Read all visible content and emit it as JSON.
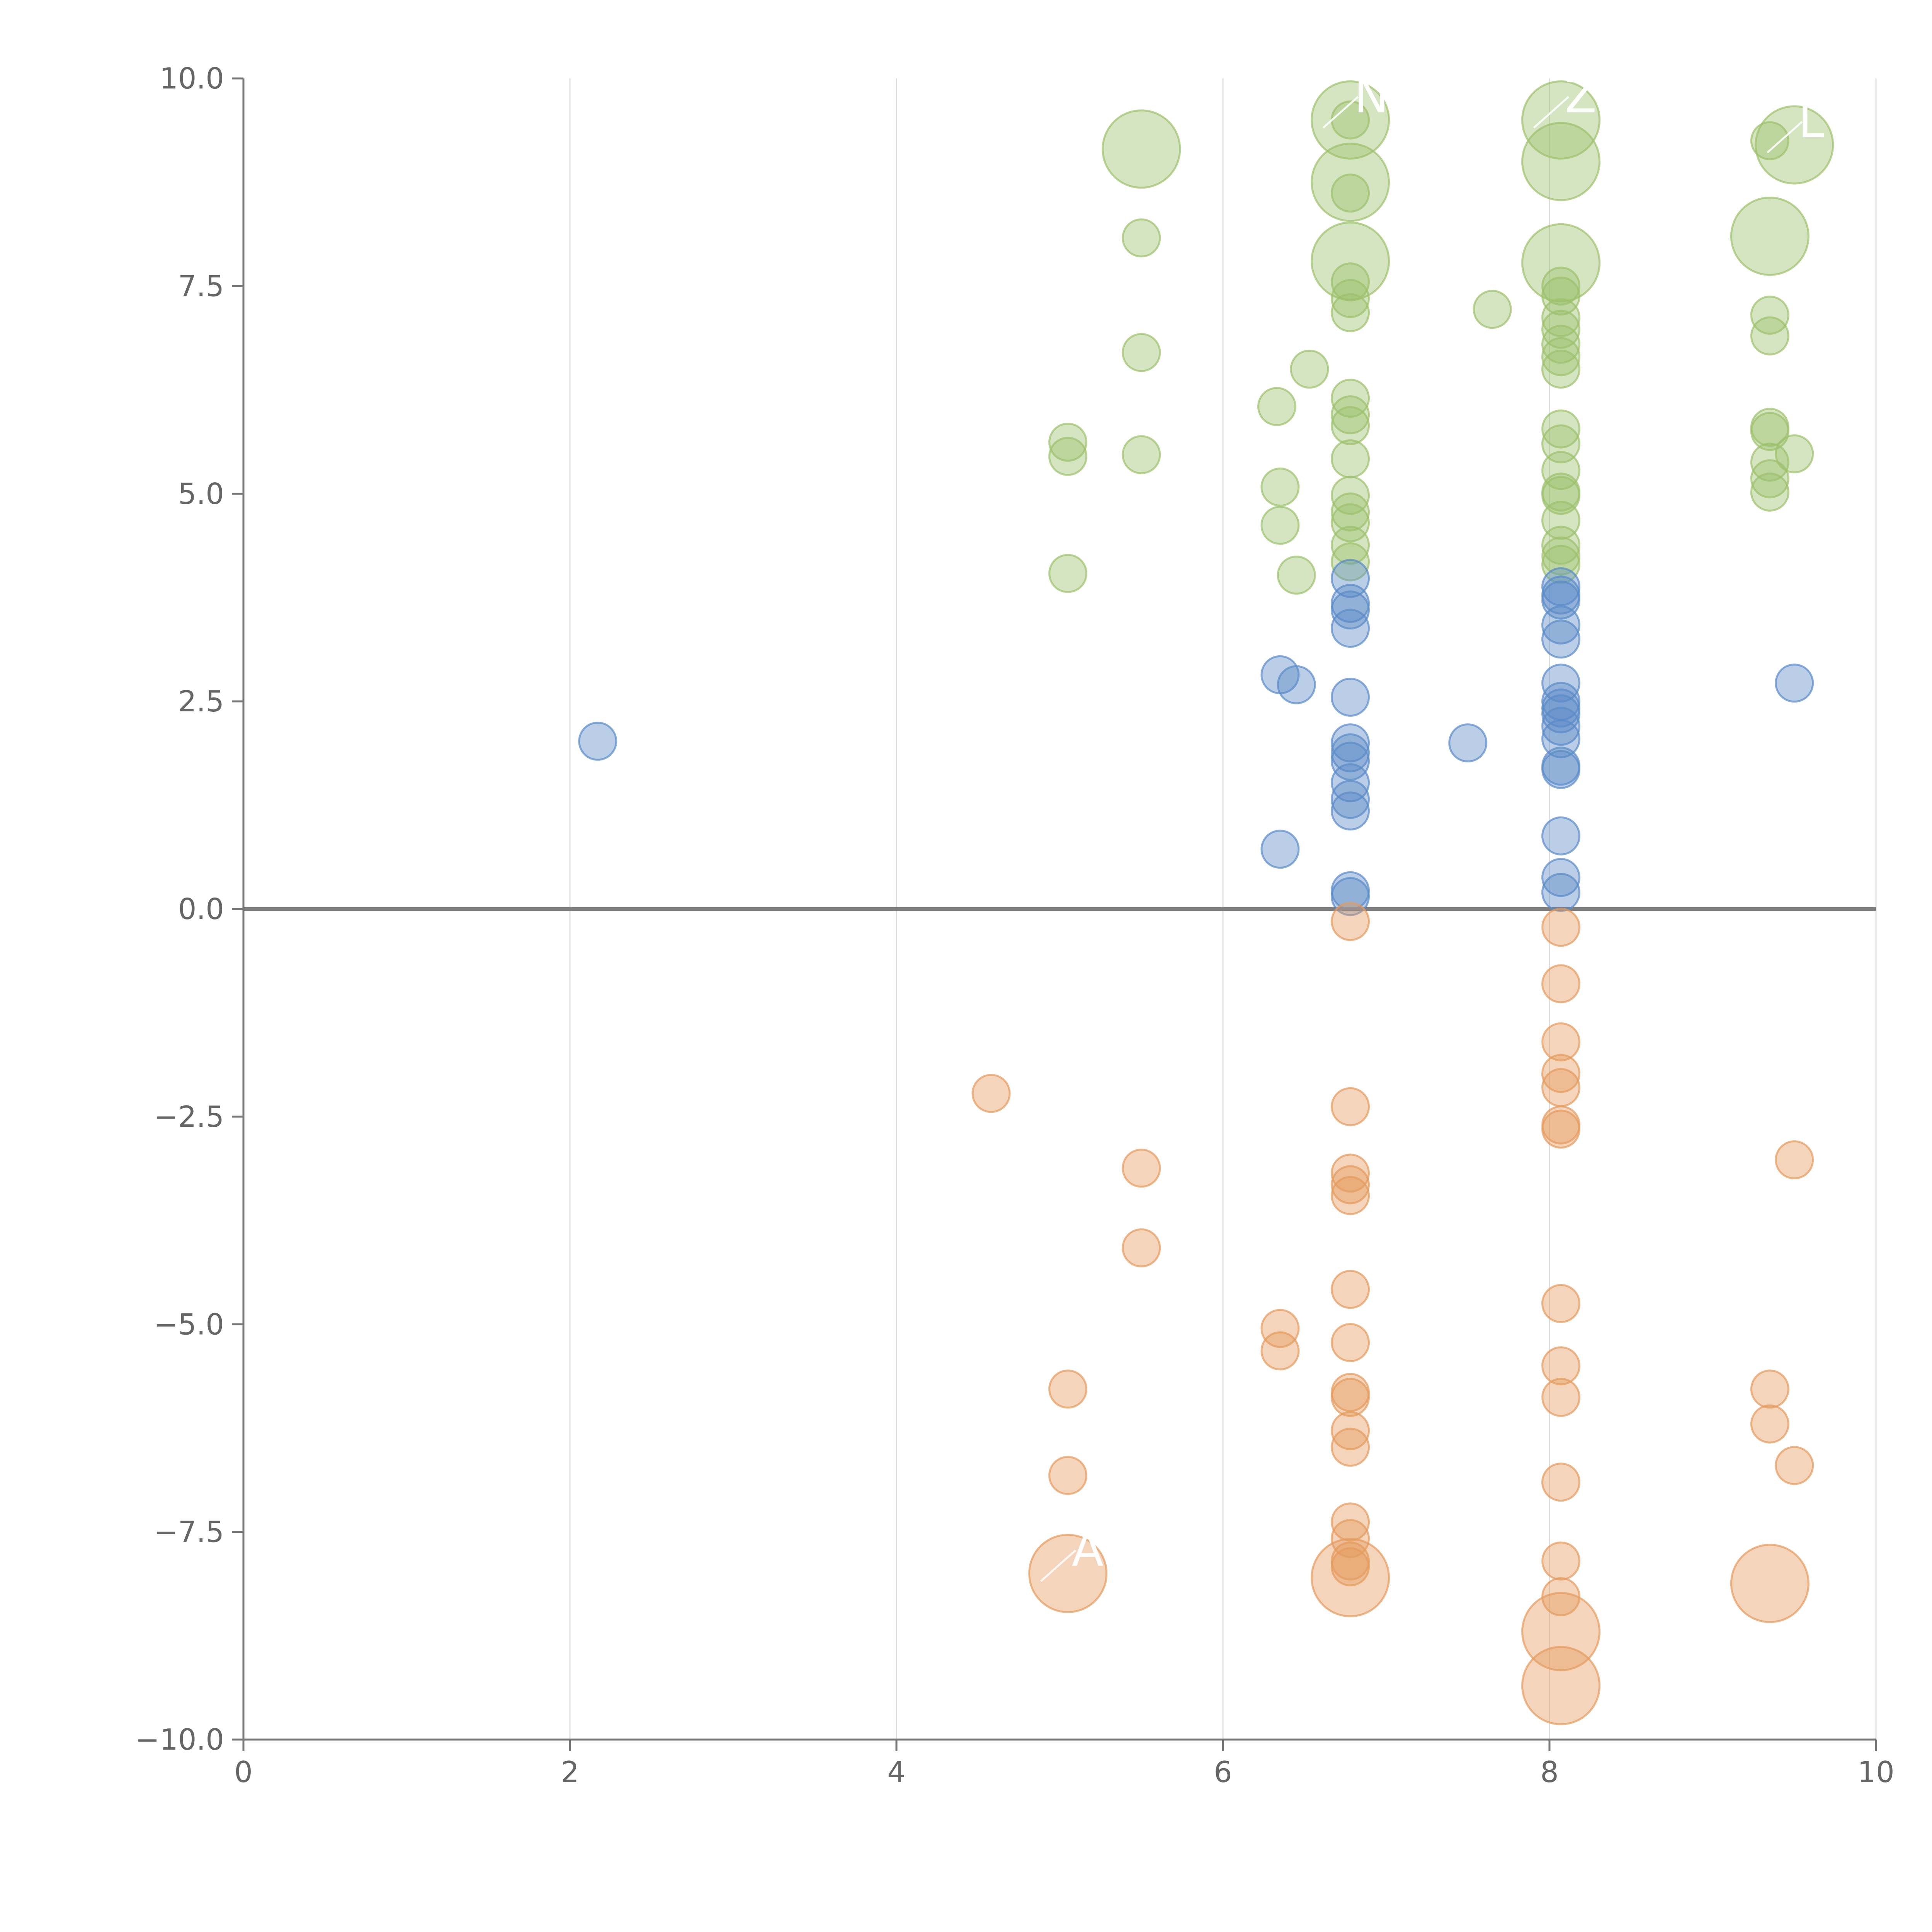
{
  "chart_data": {
    "type": "scatter",
    "title": "",
    "xlabel": "",
    "ylabel": "",
    "xlim": [
      0,
      10
    ],
    "ylim": [
      -10,
      10
    ],
    "grid": "vertical",
    "x_ticks": [
      "0",
      "2",
      "4",
      "6",
      "8",
      "10"
    ],
    "y_ticks": [
      "−10.0",
      "−7.5",
      "−5.0",
      "−2.5",
      "0.0",
      "2.5",
      "5.0",
      "7.5",
      "10.0"
    ],
    "reference_line_y": 0,
    "series": [
      {
        "name": "green",
        "color": "#9cc06b",
        "points": [
          {
            "x": 5.5,
            "y": 9.15,
            "size": 3
          },
          {
            "x": 5.5,
            "y": 8.08,
            "size": 1
          },
          {
            "x": 5.5,
            "y": 6.7,
            "size": 1
          },
          {
            "x": 5.5,
            "y": 5.47,
            "size": 1
          },
          {
            "x": 5.05,
            "y": 5.62,
            "size": 1
          },
          {
            "x": 5.05,
            "y": 5.45,
            "size": 1
          },
          {
            "x": 5.05,
            "y": 4.04,
            "size": 1
          },
          {
            "x": 6.33,
            "y": 6.05,
            "size": 1
          },
          {
            "x": 6.35,
            "y": 5.08,
            "size": 1
          },
          {
            "x": 6.35,
            "y": 4.62,
            "size": 1
          },
          {
            "x": 6.45,
            "y": 4.02,
            "size": 1
          },
          {
            "x": 6.53,
            "y": 6.5,
            "size": 1
          },
          {
            "x": 6.78,
            "y": 9.5,
            "size": 3
          },
          {
            "x": 6.78,
            "y": 8.75,
            "size": 3
          },
          {
            "x": 6.78,
            "y": 7.8,
            "size": 3
          },
          {
            "x": 6.78,
            "y": 9.5,
            "size": 1
          },
          {
            "x": 6.78,
            "y": 8.62,
            "size": 1
          },
          {
            "x": 6.78,
            "y": 7.55,
            "size": 1
          },
          {
            "x": 6.78,
            "y": 7.35,
            "size": 1
          },
          {
            "x": 6.78,
            "y": 7.18,
            "size": 1
          },
          {
            "x": 6.78,
            "y": 6.15,
            "size": 1
          },
          {
            "x": 6.78,
            "y": 5.95,
            "size": 1
          },
          {
            "x": 6.78,
            "y": 5.82,
            "size": 1
          },
          {
            "x": 6.78,
            "y": 5.42,
            "size": 1
          },
          {
            "x": 6.78,
            "y": 4.98,
            "size": 1
          },
          {
            "x": 6.78,
            "y": 4.78,
            "size": 1
          },
          {
            "x": 6.78,
            "y": 4.65,
            "size": 1
          },
          {
            "x": 6.78,
            "y": 4.38,
            "size": 1
          },
          {
            "x": 6.78,
            "y": 4.18,
            "size": 1
          },
          {
            "x": 7.65,
            "y": 7.22,
            "size": 1
          },
          {
            "x": 8.07,
            "y": 9.5,
            "size": 3
          },
          {
            "x": 8.07,
            "y": 9.0,
            "size": 3
          },
          {
            "x": 8.07,
            "y": 7.78,
            "size": 3
          },
          {
            "x": 8.07,
            "y": 7.5,
            "size": 1
          },
          {
            "x": 8.07,
            "y": 7.38,
            "size": 1
          },
          {
            "x": 8.07,
            "y": 7.12,
            "size": 1
          },
          {
            "x": 8.07,
            "y": 6.98,
            "size": 1
          },
          {
            "x": 8.07,
            "y": 6.8,
            "size": 1
          },
          {
            "x": 8.07,
            "y": 6.65,
            "size": 1
          },
          {
            "x": 8.07,
            "y": 6.5,
            "size": 1
          },
          {
            "x": 8.07,
            "y": 5.78,
            "size": 1
          },
          {
            "x": 8.07,
            "y": 5.6,
            "size": 1
          },
          {
            "x": 8.07,
            "y": 5.28,
            "size": 1
          },
          {
            "x": 8.07,
            "y": 5.02,
            "size": 1
          },
          {
            "x": 8.07,
            "y": 4.98,
            "size": 1
          },
          {
            "x": 8.07,
            "y": 4.68,
            "size": 1
          },
          {
            "x": 8.07,
            "y": 4.38,
            "size": 1
          },
          {
            "x": 8.07,
            "y": 4.25,
            "size": 1
          },
          {
            "x": 8.07,
            "y": 4.15,
            "size": 1
          },
          {
            "x": 9.35,
            "y": 8.1,
            "size": 3
          },
          {
            "x": 9.5,
            "y": 9.2,
            "size": 3
          },
          {
            "x": 9.35,
            "y": 9.25,
            "size": 1
          },
          {
            "x": 9.35,
            "y": 7.15,
            "size": 1
          },
          {
            "x": 9.35,
            "y": 6.9,
            "size": 1
          },
          {
            "x": 9.35,
            "y": 5.8,
            "size": 1
          },
          {
            "x": 9.35,
            "y": 5.75,
            "size": 1
          },
          {
            "x": 9.35,
            "y": 5.38,
            "size": 1
          },
          {
            "x": 9.35,
            "y": 5.18,
            "size": 1
          },
          {
            "x": 9.35,
            "y": 5.02,
            "size": 1
          },
          {
            "x": 9.5,
            "y": 5.48,
            "size": 1
          }
        ]
      },
      {
        "name": "blue",
        "color": "#5a8ac6",
        "points": [
          {
            "x": 2.17,
            "y": 2.02,
            "size": 1
          },
          {
            "x": 6.35,
            "y": 2.82,
            "size": 1
          },
          {
            "x": 6.45,
            "y": 2.7,
            "size": 1
          },
          {
            "x": 6.35,
            "y": 0.72,
            "size": 1
          },
          {
            "x": 6.78,
            "y": 3.98,
            "size": 1
          },
          {
            "x": 6.78,
            "y": 3.68,
            "size": 1
          },
          {
            "x": 6.78,
            "y": 3.6,
            "size": 1
          },
          {
            "x": 6.78,
            "y": 3.38,
            "size": 1
          },
          {
            "x": 6.78,
            "y": 2.55,
            "size": 1
          },
          {
            "x": 6.78,
            "y": 2.0,
            "size": 1
          },
          {
            "x": 6.78,
            "y": 1.88,
            "size": 1
          },
          {
            "x": 6.78,
            "y": 1.78,
            "size": 1
          },
          {
            "x": 6.78,
            "y": 1.52,
            "size": 1
          },
          {
            "x": 6.78,
            "y": 1.32,
            "size": 1
          },
          {
            "x": 6.78,
            "y": 1.18,
            "size": 1
          },
          {
            "x": 6.78,
            "y": 0.22,
            "size": 1
          },
          {
            "x": 6.78,
            "y": 0.15,
            "size": 1
          },
          {
            "x": 7.5,
            "y": 2.0,
            "size": 1
          },
          {
            "x": 8.07,
            "y": 3.88,
            "size": 1
          },
          {
            "x": 8.07,
            "y": 3.78,
            "size": 1
          },
          {
            "x": 8.07,
            "y": 3.72,
            "size": 1
          },
          {
            "x": 8.07,
            "y": 3.42,
            "size": 1
          },
          {
            "x": 8.07,
            "y": 3.25,
            "size": 1
          },
          {
            "x": 8.07,
            "y": 2.72,
            "size": 1
          },
          {
            "x": 8.07,
            "y": 2.5,
            "size": 1
          },
          {
            "x": 8.07,
            "y": 2.42,
            "size": 1
          },
          {
            "x": 8.07,
            "y": 2.35,
            "size": 1
          },
          {
            "x": 8.07,
            "y": 2.2,
            "size": 1
          },
          {
            "x": 8.07,
            "y": 2.05,
            "size": 1
          },
          {
            "x": 8.07,
            "y": 1.72,
            "size": 1
          },
          {
            "x": 8.07,
            "y": 1.68,
            "size": 1
          },
          {
            "x": 8.07,
            "y": 0.88,
            "size": 1
          },
          {
            "x": 8.07,
            "y": 0.38,
            "size": 1
          },
          {
            "x": 8.07,
            "y": 0.2,
            "size": 1
          },
          {
            "x": 9.5,
            "y": 2.72,
            "size": 1
          }
        ]
      },
      {
        "name": "orange",
        "color": "#e49a5c",
        "points": [
          {
            "x": 4.58,
            "y": -2.22,
            "size": 1
          },
          {
            "x": 5.5,
            "y": -3.12,
            "size": 1
          },
          {
            "x": 5.5,
            "y": -4.08,
            "size": 1
          },
          {
            "x": 5.05,
            "y": -5.78,
            "size": 1
          },
          {
            "x": 5.05,
            "y": -6.82,
            "size": 1
          },
          {
            "x": 5.05,
            "y": -8.0,
            "size": 3
          },
          {
            "x": 6.35,
            "y": -5.05,
            "size": 1
          },
          {
            "x": 6.35,
            "y": -5.32,
            "size": 1
          },
          {
            "x": 6.78,
            "y": -0.15,
            "size": 1
          },
          {
            "x": 6.78,
            "y": -2.38,
            "size": 1
          },
          {
            "x": 6.78,
            "y": -3.18,
            "size": 1
          },
          {
            "x": 6.78,
            "y": -3.32,
            "size": 1
          },
          {
            "x": 6.78,
            "y": -3.45,
            "size": 1
          },
          {
            "x": 6.78,
            "y": -4.58,
            "size": 1
          },
          {
            "x": 6.78,
            "y": -5.22,
            "size": 1
          },
          {
            "x": 6.78,
            "y": -5.82,
            "size": 1
          },
          {
            "x": 6.78,
            "y": -5.88,
            "size": 1
          },
          {
            "x": 6.78,
            "y": -6.28,
            "size": 1
          },
          {
            "x": 6.78,
            "y": -6.48,
            "size": 1
          },
          {
            "x": 6.78,
            "y": -7.38,
            "size": 1
          },
          {
            "x": 6.78,
            "y": -7.58,
            "size": 1
          },
          {
            "x": 6.78,
            "y": -7.85,
            "size": 1
          },
          {
            "x": 6.78,
            "y": -7.92,
            "size": 1
          },
          {
            "x": 6.78,
            "y": -8.05,
            "size": 3
          },
          {
            "x": 8.07,
            "y": -0.22,
            "size": 1
          },
          {
            "x": 8.07,
            "y": -0.9,
            "size": 1
          },
          {
            "x": 8.07,
            "y": -1.6,
            "size": 1
          },
          {
            "x": 8.07,
            "y": -1.98,
            "size": 1
          },
          {
            "x": 8.07,
            "y": -2.15,
            "size": 1
          },
          {
            "x": 8.07,
            "y": -2.6,
            "size": 1
          },
          {
            "x": 8.07,
            "y": -2.65,
            "size": 1
          },
          {
            "x": 8.07,
            "y": -4.75,
            "size": 1
          },
          {
            "x": 8.07,
            "y": -5.5,
            "size": 1
          },
          {
            "x": 8.07,
            "y": -5.88,
            "size": 1
          },
          {
            "x": 8.07,
            "y": -6.9,
            "size": 1
          },
          {
            "x": 8.07,
            "y": -7.85,
            "size": 1
          },
          {
            "x": 8.07,
            "y": -8.28,
            "size": 1
          },
          {
            "x": 8.07,
            "y": -8.7,
            "size": 3
          },
          {
            "x": 8.07,
            "y": -9.35,
            "size": 3
          },
          {
            "x": 9.35,
            "y": -5.78,
            "size": 1
          },
          {
            "x": 9.35,
            "y": -6.2,
            "size": 1
          },
          {
            "x": 9.35,
            "y": -8.12,
            "size": 3
          },
          {
            "x": 9.5,
            "y": -3.02,
            "size": 1
          },
          {
            "x": 9.5,
            "y": -6.7,
            "size": 1
          }
        ]
      }
    ],
    "annotations": [
      {
        "text": "N",
        "x": 6.78,
        "y": 9.5
      },
      {
        "text": "Z",
        "x": 8.07,
        "y": 9.5
      },
      {
        "text": "L",
        "x": 9.5,
        "y": 9.2
      },
      {
        "text": "A",
        "x": 5.05,
        "y": -8.0
      }
    ]
  }
}
